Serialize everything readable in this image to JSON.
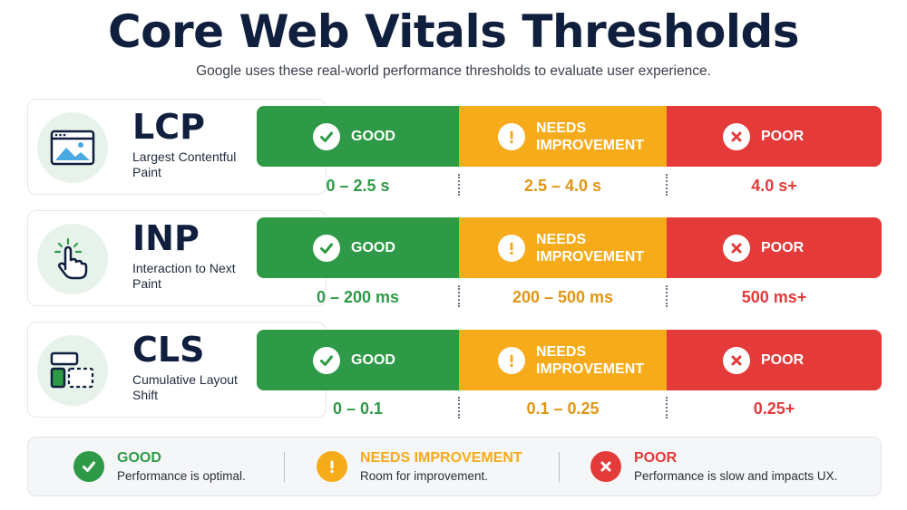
{
  "header": {
    "title": "Core Web Vitals Thresholds",
    "subtitle": "Google uses these real-world performance thresholds to evaluate user experience."
  },
  "status_labels": {
    "good": "GOOD",
    "needs": "NEEDS IMPROVEMENT",
    "poor": "POOR"
  },
  "colors": {
    "good": "#2e9a47",
    "needs": "#f6ab1b",
    "poor": "#e53a3a",
    "title": "#0f1f3d"
  },
  "metrics": [
    {
      "abbr": "LCP",
      "name": "Largest Contentful Paint",
      "icon": "image-window-icon",
      "good": "0 – 2.5 s",
      "needs": "2.5 – 4.0 s",
      "poor": "4.0 s+"
    },
    {
      "abbr": "INP",
      "name": "Interaction to Next Paint",
      "icon": "tap-hand-icon",
      "good": "0 – 200 ms",
      "needs": "200 – 500 ms",
      "poor": "500 ms+"
    },
    {
      "abbr": "CLS",
      "name": "Cumulative Layout Shift",
      "icon": "layout-shift-icon",
      "good": "0 – 0.1",
      "needs": "0.1 – 0.25",
      "poor": "0.25+"
    }
  ],
  "legend": {
    "good": {
      "title": "GOOD",
      "desc": "Performance is optimal.",
      "icon": "check-icon"
    },
    "needs": {
      "title": "NEEDS IMPROVEMENT",
      "desc": "Room for improvement.",
      "icon": "exclamation-icon"
    },
    "poor": {
      "title": "POOR",
      "desc": "Performance is slow and impacts UX.",
      "icon": "x-icon"
    }
  }
}
